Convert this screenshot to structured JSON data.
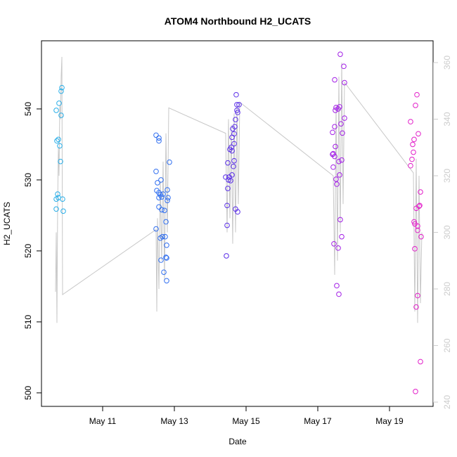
{
  "chart_data": {
    "type": "scatter",
    "title": "ATOM4 Northbound H2_UCATS",
    "x_label": "Date",
    "y_label": "H2_UCATS",
    "xlim": [
      9.294,
      20.216
    ],
    "ylim": [
      498.1,
      549.6
    ],
    "y2lim": [
      238.5,
      367.7
    ],
    "xticks": [
      {
        "value": 11,
        "label": "May 11"
      },
      {
        "value": 13,
        "label": "May 13"
      },
      {
        "value": 15,
        "label": "May 15"
      },
      {
        "value": 17,
        "label": "May 17"
      },
      {
        "value": 19,
        "label": "May 19"
      }
    ],
    "yticks": [
      500,
      510,
      520,
      530,
      540
    ],
    "y2ticks": [
      240,
      260,
      280,
      300,
      320,
      340,
      360
    ],
    "y2_color": "#cccccc",
    "series": [
      {
        "type": "line",
        "axis": "y2",
        "color": "#c8c8c8",
        "x": [
          9.686,
          9.706,
          9.725,
          9.745,
          9.765,
          9.784,
          9.804,
          9.824,
          9.843,
          9.863,
          9.882,
          12.49,
          12.51,
          12.529,
          12.569,
          12.608,
          12.647,
          12.686,
          12.725,
          12.765,
          12.804,
          12.843,
          14.431,
          14.471,
          14.51,
          14.549,
          14.588,
          14.627,
          14.667,
          14.706,
          14.745,
          14.784,
          14.824,
          17.431,
          17.471,
          17.51,
          17.549,
          17.588,
          17.627,
          17.667,
          17.706,
          17.745,
          19.667,
          19.706,
          19.745,
          19.784,
          19.824,
          19.863,
          19.902
        ],
        "values": [
          279,
          300,
          268,
          310,
          330,
          320,
          345,
          340,
          355,
          362,
          278,
          301,
          272,
          305,
          280,
          318,
          290,
          325,
          283,
          335,
          300,
          344,
          335,
          300,
          340,
          305,
          338,
          296,
          342,
          300,
          345,
          310,
          346,
          320,
          285,
          345,
          290,
          355,
          300,
          360,
          310,
          353,
          321,
          272,
          326,
          268,
          320,
          275,
          300
        ]
      },
      {
        "type": "points",
        "color": "#29aee8",
        "x": [
          9.863,
          9.843,
          9.784,
          9.706,
          9.843,
          9.725,
          9.765,
          9.804,
          9.824,
          9.745,
          9.706,
          9.765,
          9.882,
          9.706,
          9.902
        ],
        "values": [
          543.0,
          542.5,
          540.8,
          539.8,
          539.1,
          535.5,
          535.7,
          534.8,
          532.6,
          528.0,
          527.3,
          527.5,
          527.3,
          525.9,
          525.6
        ]
      },
      {
        "type": "points",
        "color": "#2f6ef0",
        "x": [
          12.49,
          12.569,
          12.569,
          12.49,
          12.529,
          12.627,
          12.51,
          12.569,
          12.608,
          12.647,
          12.569,
          12.686,
          12.804,
          12.824,
          12.804,
          12.569,
          12.647,
          12.725,
          12.863,
          12.765,
          12.667,
          12.745,
          12.608,
          12.784,
          12.49,
          12.784,
          12.706,
          12.784,
          12.627,
          12.765
        ],
        "values": [
          536.3,
          535.9,
          535.5,
          531.2,
          529.6,
          530.0,
          528.5,
          528.2,
          527.9,
          527.6,
          527.5,
          528.0,
          528.6,
          527.5,
          527.1,
          526.2,
          525.8,
          525.7,
          532.5,
          524.1,
          522.0,
          522.0,
          521.8,
          520.8,
          523.1,
          519.0,
          517.0,
          515.8,
          518.7,
          519.1
        ]
      },
      {
        "type": "points",
        "color": "#5a2ee8",
        "x": [
          14.725,
          14.745,
          14.804,
          14.745,
          14.765,
          14.706,
          14.686,
          14.627,
          14.667,
          14.608,
          14.667,
          14.588,
          14.549,
          14.608,
          14.49,
          14.667,
          14.647,
          14.608,
          14.529,
          14.569,
          14.51,
          14.431,
          14.49,
          14.471,
          14.706,
          14.765,
          14.471,
          14.451
        ],
        "values": [
          542.0,
          540.6,
          540.6,
          539.8,
          539.5,
          538.5,
          537.5,
          537.2,
          536.5,
          536.0,
          535.1,
          534.6,
          534.3,
          534.1,
          532.4,
          532.7,
          531.9,
          530.7,
          530.4,
          529.9,
          530.0,
          530.4,
          528.8,
          526.4,
          525.9,
          525.5,
          523.6,
          519.3
        ]
      },
      {
        "type": "points",
        "color": "#a21ee6",
        "x": [
          17.627,
          17.725,
          17.471,
          17.745,
          17.51,
          17.569,
          17.608,
          17.49,
          17.745,
          17.647,
          17.471,
          17.412,
          17.686,
          17.49,
          17.431,
          17.471,
          17.412,
          17.588,
          17.667,
          17.431,
          17.608,
          17.51,
          17.529,
          17.627,
          17.451,
          17.569,
          17.667,
          17.529,
          17.588
        ],
        "values": [
          547.7,
          546.0,
          544.1,
          543.7,
          540.2,
          540.0,
          540.3,
          539.8,
          538.7,
          537.9,
          537.5,
          536.7,
          536.6,
          534.7,
          533.7,
          533.3,
          533.6,
          532.6,
          532.8,
          531.8,
          530.7,
          530.1,
          529.4,
          524.4,
          521.0,
          520.4,
          522.0,
          515.1,
          513.9
        ]
      },
      {
        "type": "points",
        "color": "#e21dc9",
        "x": [
          19.765,
          19.725,
          19.588,
          19.804,
          19.686,
          19.647,
          19.667,
          19.627,
          19.588,
          19.863,
          19.824,
          19.843,
          19.745,
          19.686,
          19.706,
          19.784,
          19.784,
          19.882,
          19.706,
          19.784,
          19.745,
          19.863,
          19.725
        ],
        "values": [
          542.0,
          540.5,
          538.2,
          536.5,
          535.7,
          535.0,
          533.9,
          532.9,
          532.0,
          528.3,
          526.3,
          526.4,
          526.0,
          524.1,
          523.8,
          523.5,
          522.9,
          522.0,
          520.3,
          513.7,
          512.1,
          504.4,
          500.2
        ]
      }
    ]
  }
}
